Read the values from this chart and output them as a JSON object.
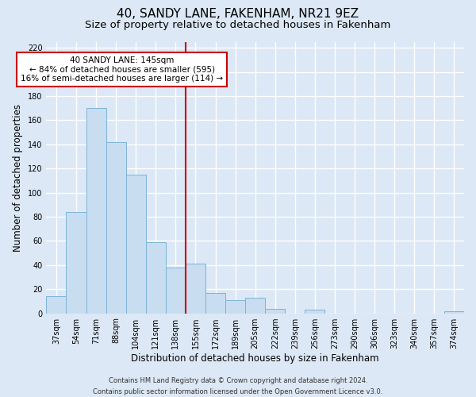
{
  "title": "40, SANDY LANE, FAKENHAM, NR21 9EZ",
  "subtitle": "Size of property relative to detached houses in Fakenham",
  "xlabel": "Distribution of detached houses by size in Fakenham",
  "ylabel": "Number of detached properties",
  "bar_labels": [
    "37sqm",
    "54sqm",
    "71sqm",
    "88sqm",
    "104sqm",
    "121sqm",
    "138sqm",
    "155sqm",
    "172sqm",
    "189sqm",
    "205sqm",
    "222sqm",
    "239sqm",
    "256sqm",
    "273sqm",
    "290sqm",
    "306sqm",
    "323sqm",
    "340sqm",
    "357sqm",
    "374sqm"
  ],
  "bar_values": [
    14,
    84,
    170,
    142,
    115,
    59,
    38,
    41,
    17,
    11,
    13,
    4,
    0,
    3,
    0,
    0,
    0,
    0,
    0,
    0,
    2
  ],
  "bar_color": "#c9ddf0",
  "bar_edge_color": "#7db3d8",
  "vline_color": "#cc0000",
  "annotation_text": "40 SANDY LANE: 145sqm\n← 84% of detached houses are smaller (595)\n16% of semi-detached houses are larger (114) →",
  "annotation_box_color": "#ffffff",
  "annotation_box_edge": "#cc0000",
  "ylim": [
    0,
    225
  ],
  "yticks": [
    0,
    20,
    40,
    60,
    80,
    100,
    120,
    140,
    160,
    180,
    200,
    220
  ],
  "footer": "Contains HM Land Registry data © Crown copyright and database right 2024.\nContains public sector information licensed under the Open Government Licence v3.0.",
  "background_color": "#dce8f5",
  "plot_background_color": "#dce8f5",
  "grid_color": "#ffffff",
  "title_fontsize": 11,
  "subtitle_fontsize": 9.5,
  "axis_label_fontsize": 8.5,
  "tick_fontsize": 7,
  "footer_fontsize": 6,
  "annotation_fontsize": 7.5
}
